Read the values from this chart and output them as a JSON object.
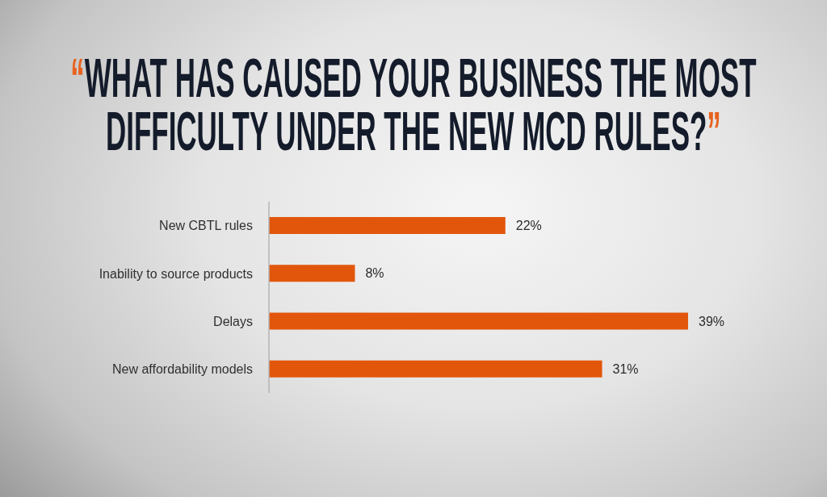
{
  "chart_data": {
    "type": "bar",
    "orientation": "horizontal",
    "title": "“WHAT HAS CAUSED YOUR BUSINESS THE MOST DIFFICULTY UNDER THE NEW MCD RULES?”",
    "categories": [
      "New CBTL rules",
      "Inability to source products",
      "Delays",
      "New affordability models"
    ],
    "values": [
      22,
      8,
      39,
      31
    ],
    "value_labels": [
      "22%",
      "8%",
      "39%",
      "31%"
    ],
    "color": "#e2560b"
  }
}
